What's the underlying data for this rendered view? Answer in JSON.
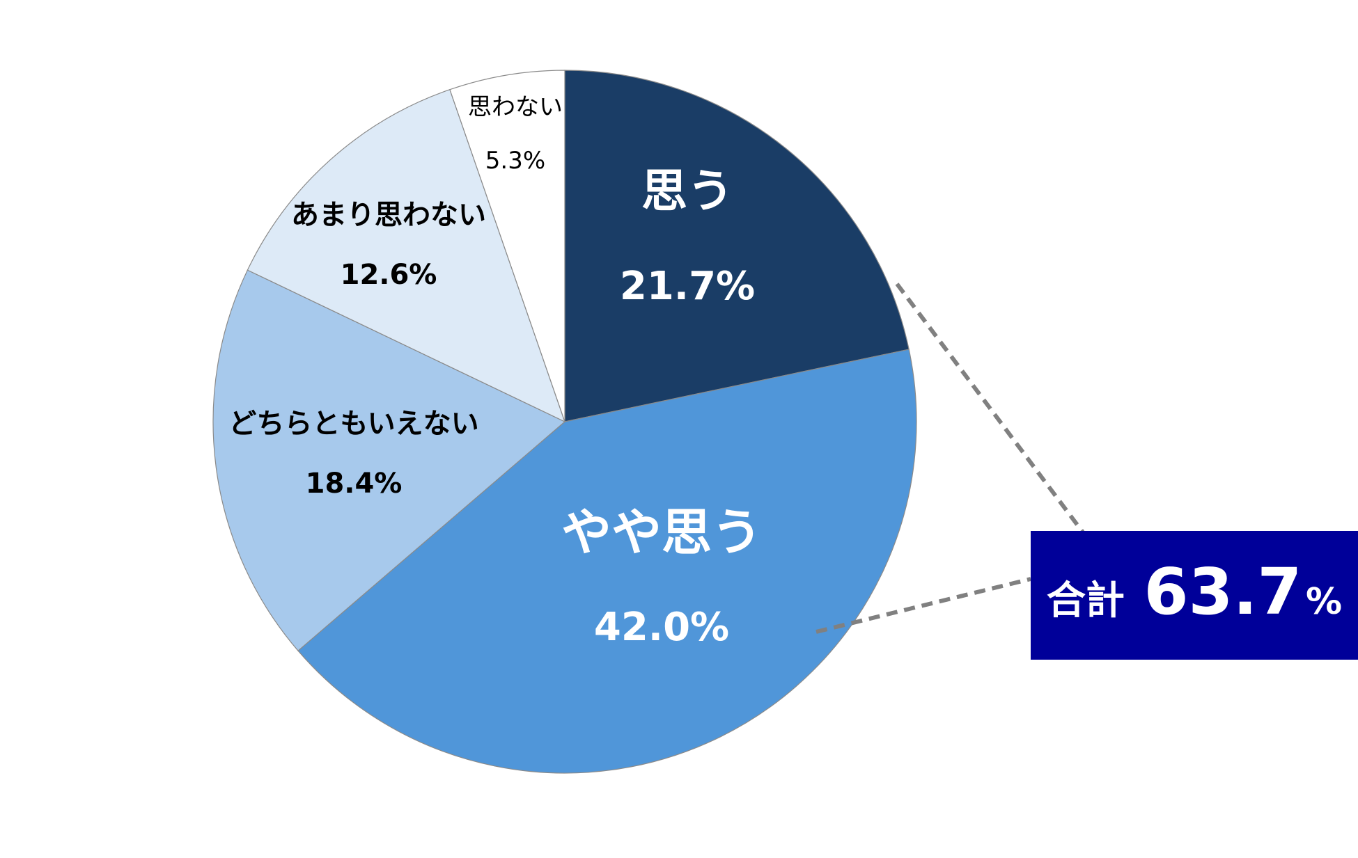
{
  "chart_data": {
    "type": "pie",
    "slices": [
      {
        "label": "思う",
        "value": 21.7,
        "value_text": "21.7%",
        "color": "#1a3d66"
      },
      {
        "label": "やや思う",
        "value": 42.0,
        "value_text": "42.0%",
        "color": "#5096d9"
      },
      {
        "label": "どちらともいえない",
        "value": 18.4,
        "value_text": "18.4%",
        "color": "#a7c9ec"
      },
      {
        "label": "あまり思わない",
        "value": 12.6,
        "value_text": "12.6%",
        "color": "#ddeaf7"
      },
      {
        "label": "思わない",
        "value": 5.3,
        "value_text": "5.3%",
        "color": "#ffffff"
      }
    ],
    "start": "12 o'clock",
    "direction": "clockwise",
    "annotation": {
      "label": "合計",
      "value": "63.7",
      "unit": "%",
      "covers": [
        "思う",
        "やや思う"
      ],
      "box_color": "#000099",
      "text_color": "#ffffff",
      "connector_color": "#808080",
      "connector_style": "dashed"
    }
  }
}
